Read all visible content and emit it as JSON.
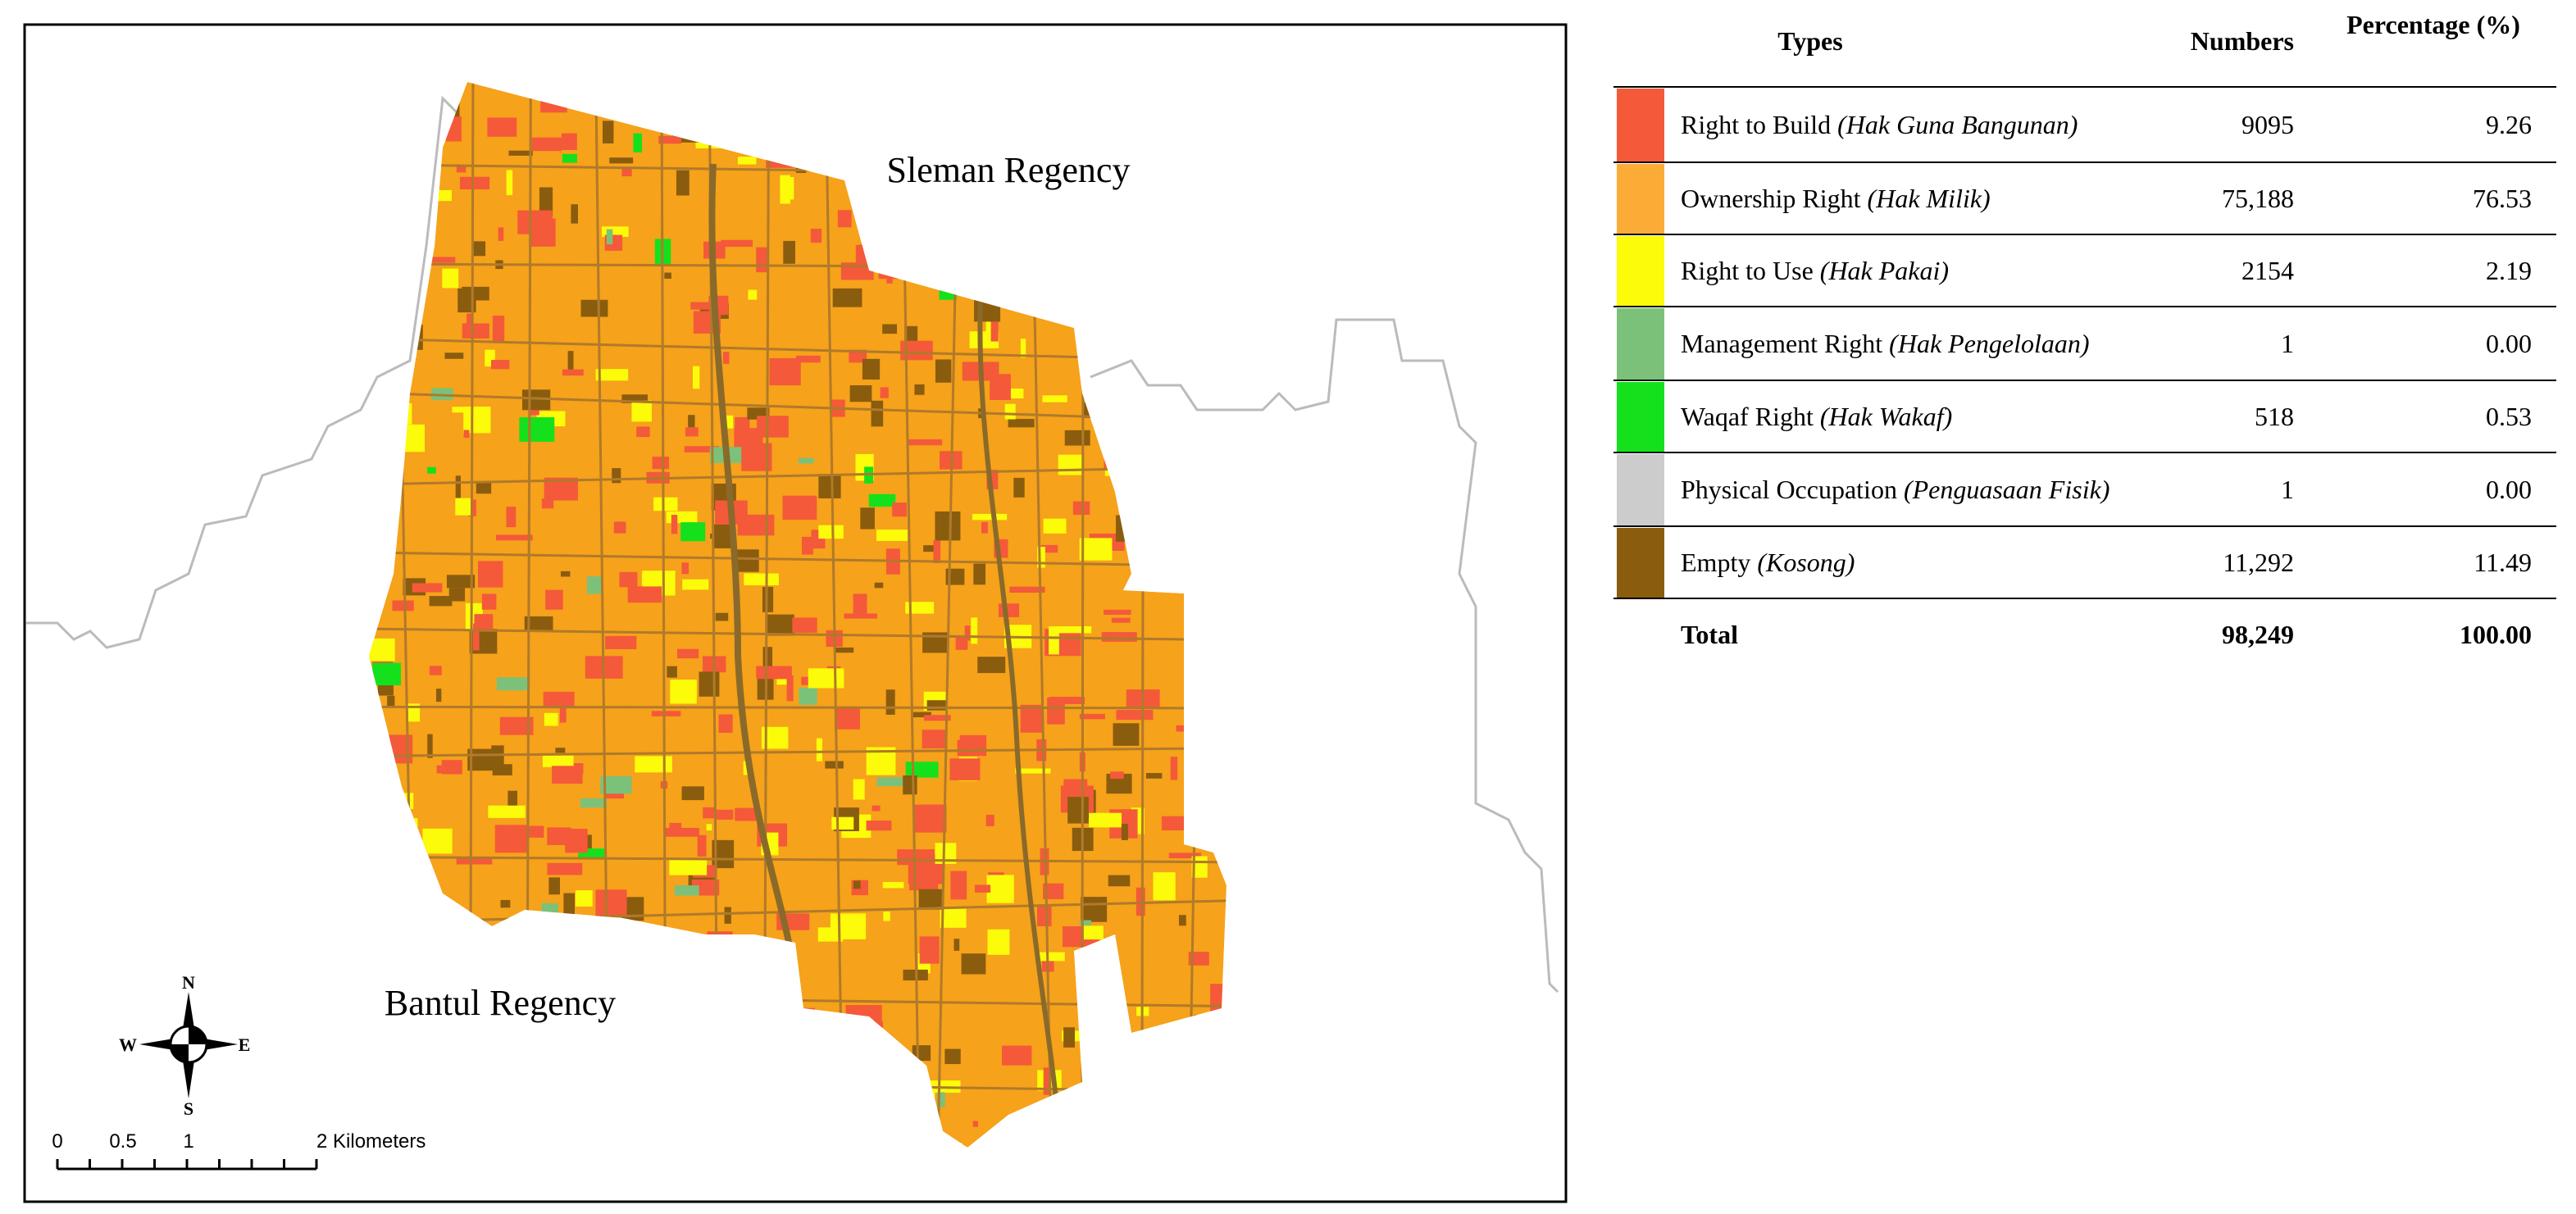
{
  "map": {
    "labels": {
      "north_region": "Sleman Regency",
      "south_region": "Bantul Regency"
    },
    "compass": {
      "n": "N",
      "e": "E",
      "s": "S",
      "w": "W"
    },
    "scale_bar": [
      "0",
      "0.5",
      "1",
      "2 Kilometers"
    ]
  },
  "table": {
    "headers": [
      "Types",
      "Numbers",
      "Percentage (%)"
    ],
    "rows": [
      {
        "type": "Right to Build",
        "local_name": "(Hak Guna Bangunan)",
        "number": "9095",
        "percentage": "9.26",
        "color": "#f4593a"
      },
      {
        "type": "Ownership Right",
        "local_name": "(Hak Milik)",
        "number": "75,188",
        "percentage": "76.53",
        "color": "#fbac37"
      },
      {
        "type": "Right to Use",
        "local_name": "(Hak Pakai)",
        "number": "2154",
        "percentage": "2.19",
        "color": "#fbfb0a"
      },
      {
        "type": "Management Right",
        "local_name": "(Hak Pengelolaan)",
        "number": "1",
        "percentage": "0.00",
        "color": "#7cc17a"
      },
      {
        "type": "Waqaf Right",
        "local_name": "(Hak Wakaf)",
        "number": "518",
        "percentage": "0.53",
        "color": "#14e11c"
      },
      {
        "type": "Physical Occupation",
        "local_name": "(Penguasaan Fisik)",
        "number": "1",
        "percentage": "0.00",
        "color": "#cccccc"
      },
      {
        "type": "Empty",
        "local_name": "(Kosong)",
        "number": "11,292",
        "percentage": "11.49",
        "color": "#8a5c0e"
      }
    ],
    "total": {
      "label": "Total",
      "number": "98,249",
      "percentage": "100.00"
    }
  }
}
